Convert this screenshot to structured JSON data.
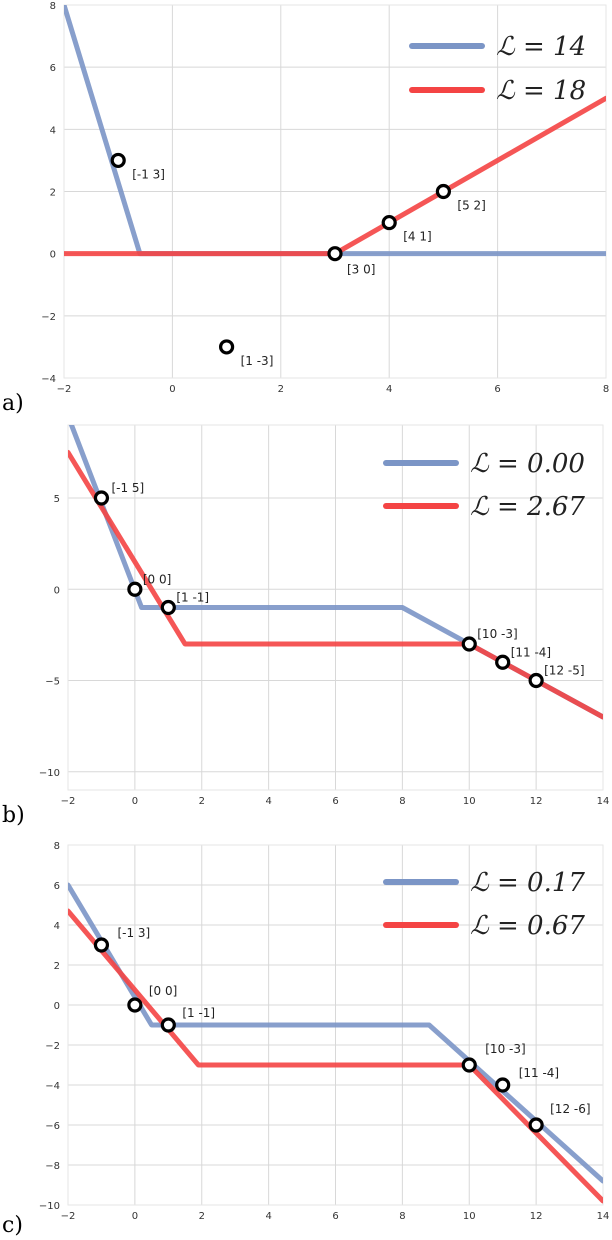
{
  "chart_data": [
    {
      "type": "line",
      "panel_label": "a)",
      "xlim": [
        -2,
        8
      ],
      "ylim": [
        -4,
        8
      ],
      "xticks": [
        -2,
        0,
        2,
        4,
        6,
        8
      ],
      "yticks": [
        -4,
        -2,
        0,
        2,
        4,
        6,
        8
      ],
      "grid": true,
      "legend_position": "top-right",
      "series": [
        {
          "name": "ℒ = 14",
          "color": "#7b95c6",
          "x": [
            -2,
            -0.6,
            8
          ],
          "y": [
            8,
            0,
            0
          ]
        },
        {
          "name": "ℒ = 18",
          "color": "#f44444",
          "x": [
            -2,
            3,
            8
          ],
          "y": [
            0,
            0,
            5
          ]
        }
      ],
      "points": [
        {
          "x": -1,
          "y": 3,
          "label": "[-1 3]"
        },
        {
          "x": 1,
          "y": -3,
          "label": "[1 -3]"
        },
        {
          "x": 3,
          "y": 0,
          "label": "[3 0]"
        },
        {
          "x": 4,
          "y": 1,
          "label": "[4 1]"
        },
        {
          "x": 5,
          "y": 2,
          "label": "[5 2]"
        }
      ]
    },
    {
      "type": "line",
      "panel_label": "b)",
      "xlim": [
        -2,
        14
      ],
      "ylim": [
        -11,
        9
      ],
      "xticks": [
        -2,
        0,
        2,
        4,
        6,
        8,
        10,
        12,
        14
      ],
      "yticks": [
        -10,
        -5,
        0,
        5
      ],
      "grid": true,
      "legend_position": "top-right",
      "series": [
        {
          "name": "ℒ = 0.00",
          "color": "#7b95c6",
          "x": [
            -2,
            0.2,
            8,
            14
          ],
          "y": [
            9.5,
            -1,
            -1,
            -7
          ]
        },
        {
          "name": "ℒ = 2.67",
          "color": "#f44444",
          "x": [
            -2,
            1.5,
            10,
            14
          ],
          "y": [
            7.5,
            -3,
            -3,
            -7
          ]
        }
      ],
      "points": [
        {
          "x": -1,
          "y": 5,
          "label": "[-1 5]"
        },
        {
          "x": 0,
          "y": 0,
          "label": "[0 0]"
        },
        {
          "x": 1,
          "y": -1,
          "label": "[1 -1]"
        },
        {
          "x": 10,
          "y": -3,
          "label": "[10 -3]"
        },
        {
          "x": 11,
          "y": -4,
          "label": "[11 -4]"
        },
        {
          "x": 12,
          "y": -5,
          "label": "[12 -5]"
        }
      ]
    },
    {
      "type": "line",
      "panel_label": "c)",
      "xlim": [
        -2,
        14
      ],
      "ylim": [
        -10,
        8
      ],
      "xticks": [
        -2,
        0,
        2,
        4,
        6,
        8,
        10,
        12,
        14
      ],
      "yticks": [
        -10,
        -8,
        -6,
        -4,
        -2,
        0,
        2,
        4,
        6,
        8
      ],
      "grid": true,
      "legend_position": "top-right",
      "series": [
        {
          "name": "ℒ = 0.17",
          "color": "#7b95c6",
          "x": [
            -2,
            0.5,
            8.8,
            14
          ],
          "y": [
            6,
            -1,
            -1,
            -8.8
          ]
        },
        {
          "name": "ℒ = 0.67",
          "color": "#f44444",
          "x": [
            -2,
            1.9,
            10,
            14
          ],
          "y": [
            4.7,
            -3,
            -3,
            -9.8
          ]
        }
      ],
      "points": [
        {
          "x": -1,
          "y": 3,
          "label": "[-1 3]"
        },
        {
          "x": 0,
          "y": 0,
          "label": "[0 0]"
        },
        {
          "x": 1,
          "y": -1,
          "label": "[1 -1]"
        },
        {
          "x": 10,
          "y": -3,
          "label": "[10 -3]"
        },
        {
          "x": 11,
          "y": -4,
          "label": "[11 -4]"
        },
        {
          "x": 12,
          "y": -6,
          "label": "[12 -6]"
        }
      ]
    }
  ]
}
